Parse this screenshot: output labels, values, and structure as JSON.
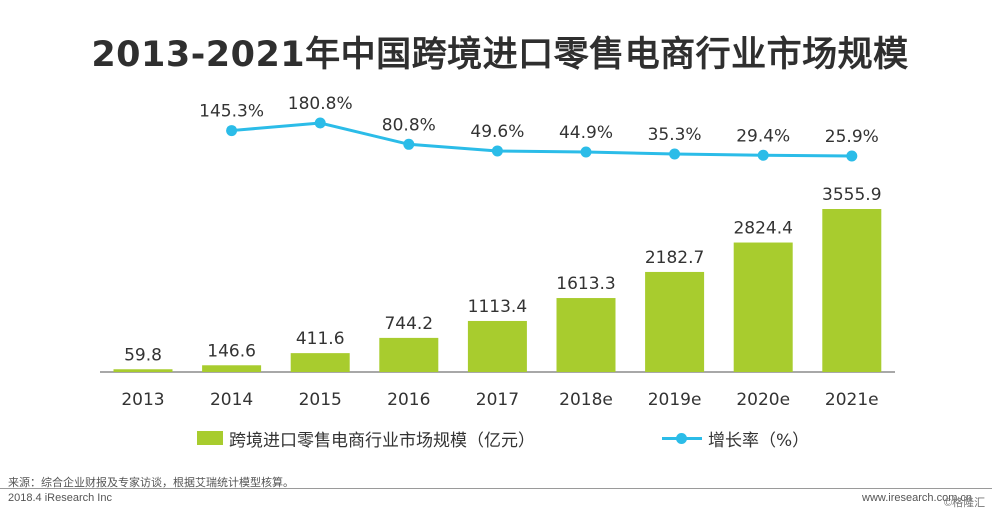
{
  "title": "2013-2021年中国跨境进口零售电商行业市场规模",
  "chart_data": {
    "type": "bar",
    "categories": [
      "2013",
      "2014",
      "2015",
      "2016",
      "2017",
      "2018e",
      "2019e",
      "2020e",
      "2021e"
    ],
    "series": [
      {
        "name": "跨境进口零售电商行业市场规模（亿元）",
        "type": "bar",
        "values": [
          59.8,
          146.6,
          411.6,
          744.2,
          1113.4,
          1613.3,
          2182.7,
          2824.4,
          3555.9
        ],
        "labels": [
          "59.8",
          "146.6",
          "411.6",
          "744.2",
          "1113.4",
          "1613.3",
          "2182.7",
          "2824.4",
          "3555.9"
        ],
        "color": "#a8cc2e"
      },
      {
        "name": "增长率（%）",
        "type": "line",
        "x": [
          "2014",
          "2015",
          "2016",
          "2017",
          "2018e",
          "2019e",
          "2020e",
          "2021e"
        ],
        "values": [
          145.3,
          180.8,
          80.8,
          49.6,
          44.9,
          35.3,
          29.4,
          25.9
        ],
        "labels": [
          "145.3%",
          "180.8%",
          "80.8%",
          "49.6%",
          "44.9%",
          "35.3%",
          "29.4%",
          "25.9%"
        ],
        "color": "#2bbce8"
      }
    ],
    "grid": false,
    "legend_position": "bottom"
  },
  "legend": {
    "bar_label": "跨境进口零售电商行业市场规模（亿元）",
    "line_label": "增长率（%）"
  },
  "footer": {
    "source": "来源：综合企业财报及专家访谈，根据艾瑞统计模型核算。",
    "date_org": "2018.4 iResearch Inc",
    "website": "www.iresearch.com.cn",
    "watermark": "©格隆汇"
  }
}
